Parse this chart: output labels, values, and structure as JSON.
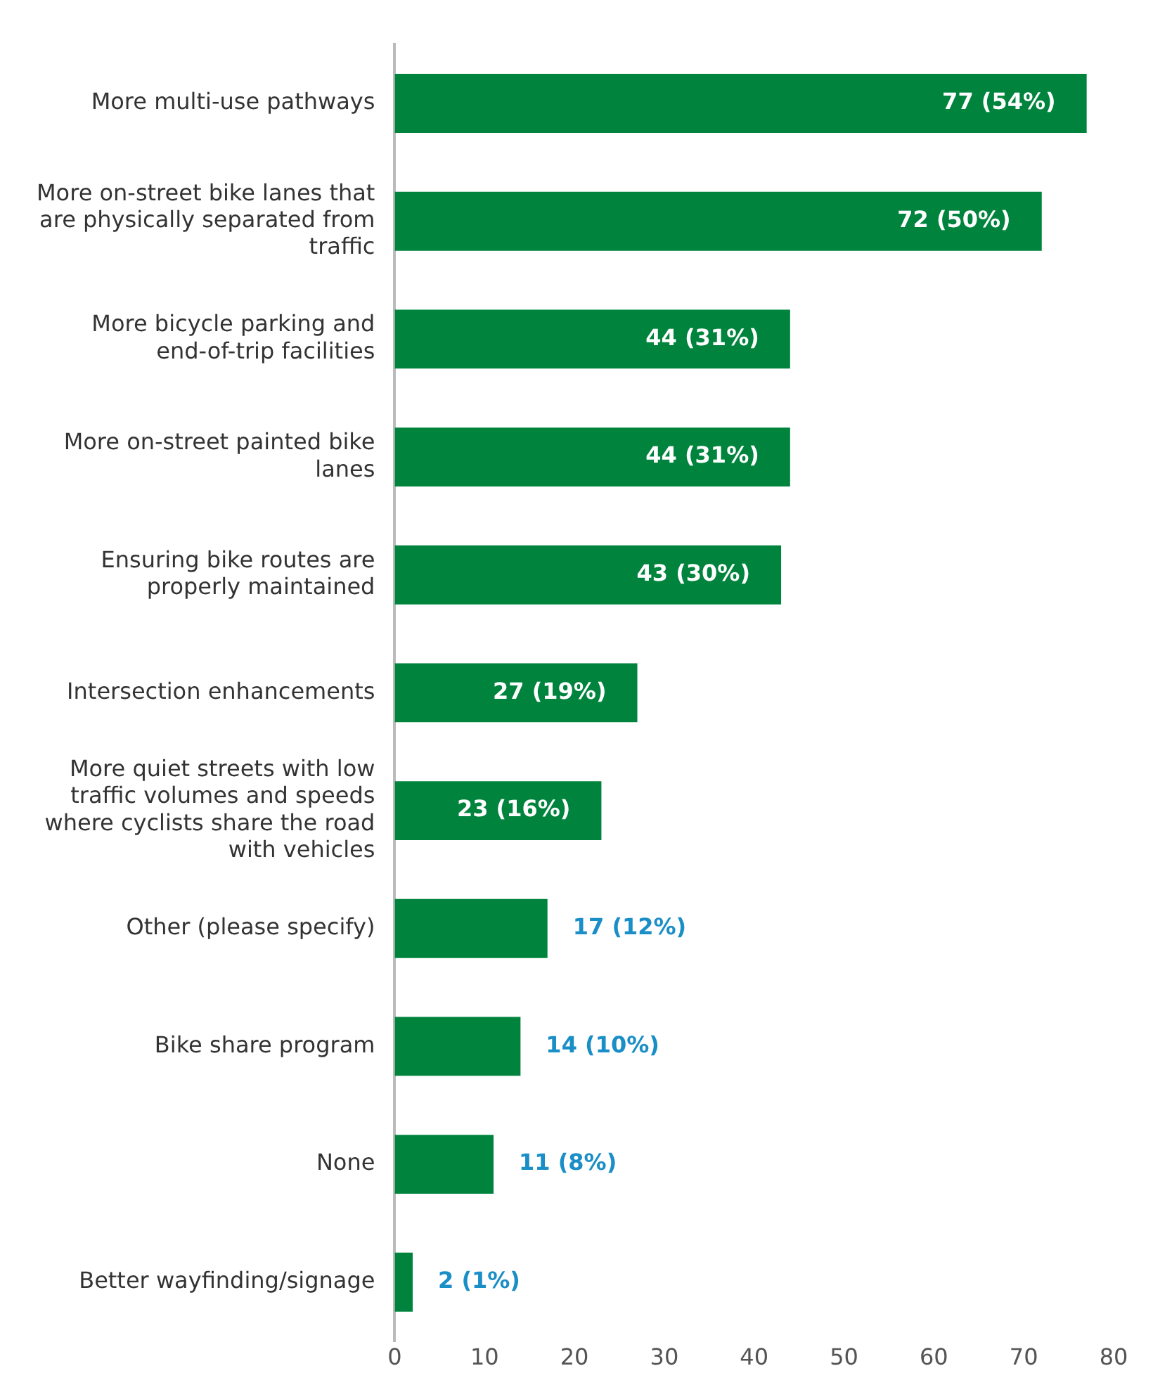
{
  "chart_data": {
    "type": "bar",
    "orientation": "horizontal",
    "categories": [
      "More multi-use pathways",
      "More on-street bike lanes that are physically separated from traffic",
      "More bicycle parking and end-of-trip facilities",
      "More on-street painted bike lanes",
      "Ensuring bike routes are properly maintained",
      "Intersection enhancements",
      "More quiet streets with low traffic volumes and speeds where cyclists share the road with vehicles",
      "Other (please specify)",
      "Bike share program",
      "None",
      "Better wayfinding/signage"
    ],
    "values": [
      77,
      72,
      44,
      44,
      43,
      27,
      23,
      17,
      14,
      11,
      2
    ],
    "value_labels": [
      "77 (54%)",
      "72 (50%)",
      "44 (31%)",
      "44 (31%)",
      "43 (30%)",
      "27 (19%)",
      "23 (16%)",
      "17 (12%)",
      "14 (10%)",
      "11 (8%)",
      "2 (1%)"
    ],
    "color": "#00843d",
    "xlim": [
      0,
      80
    ],
    "xticks": [
      0,
      10,
      20,
      30,
      40,
      50,
      60,
      70,
      80
    ],
    "grid": false,
    "legend": false
  }
}
